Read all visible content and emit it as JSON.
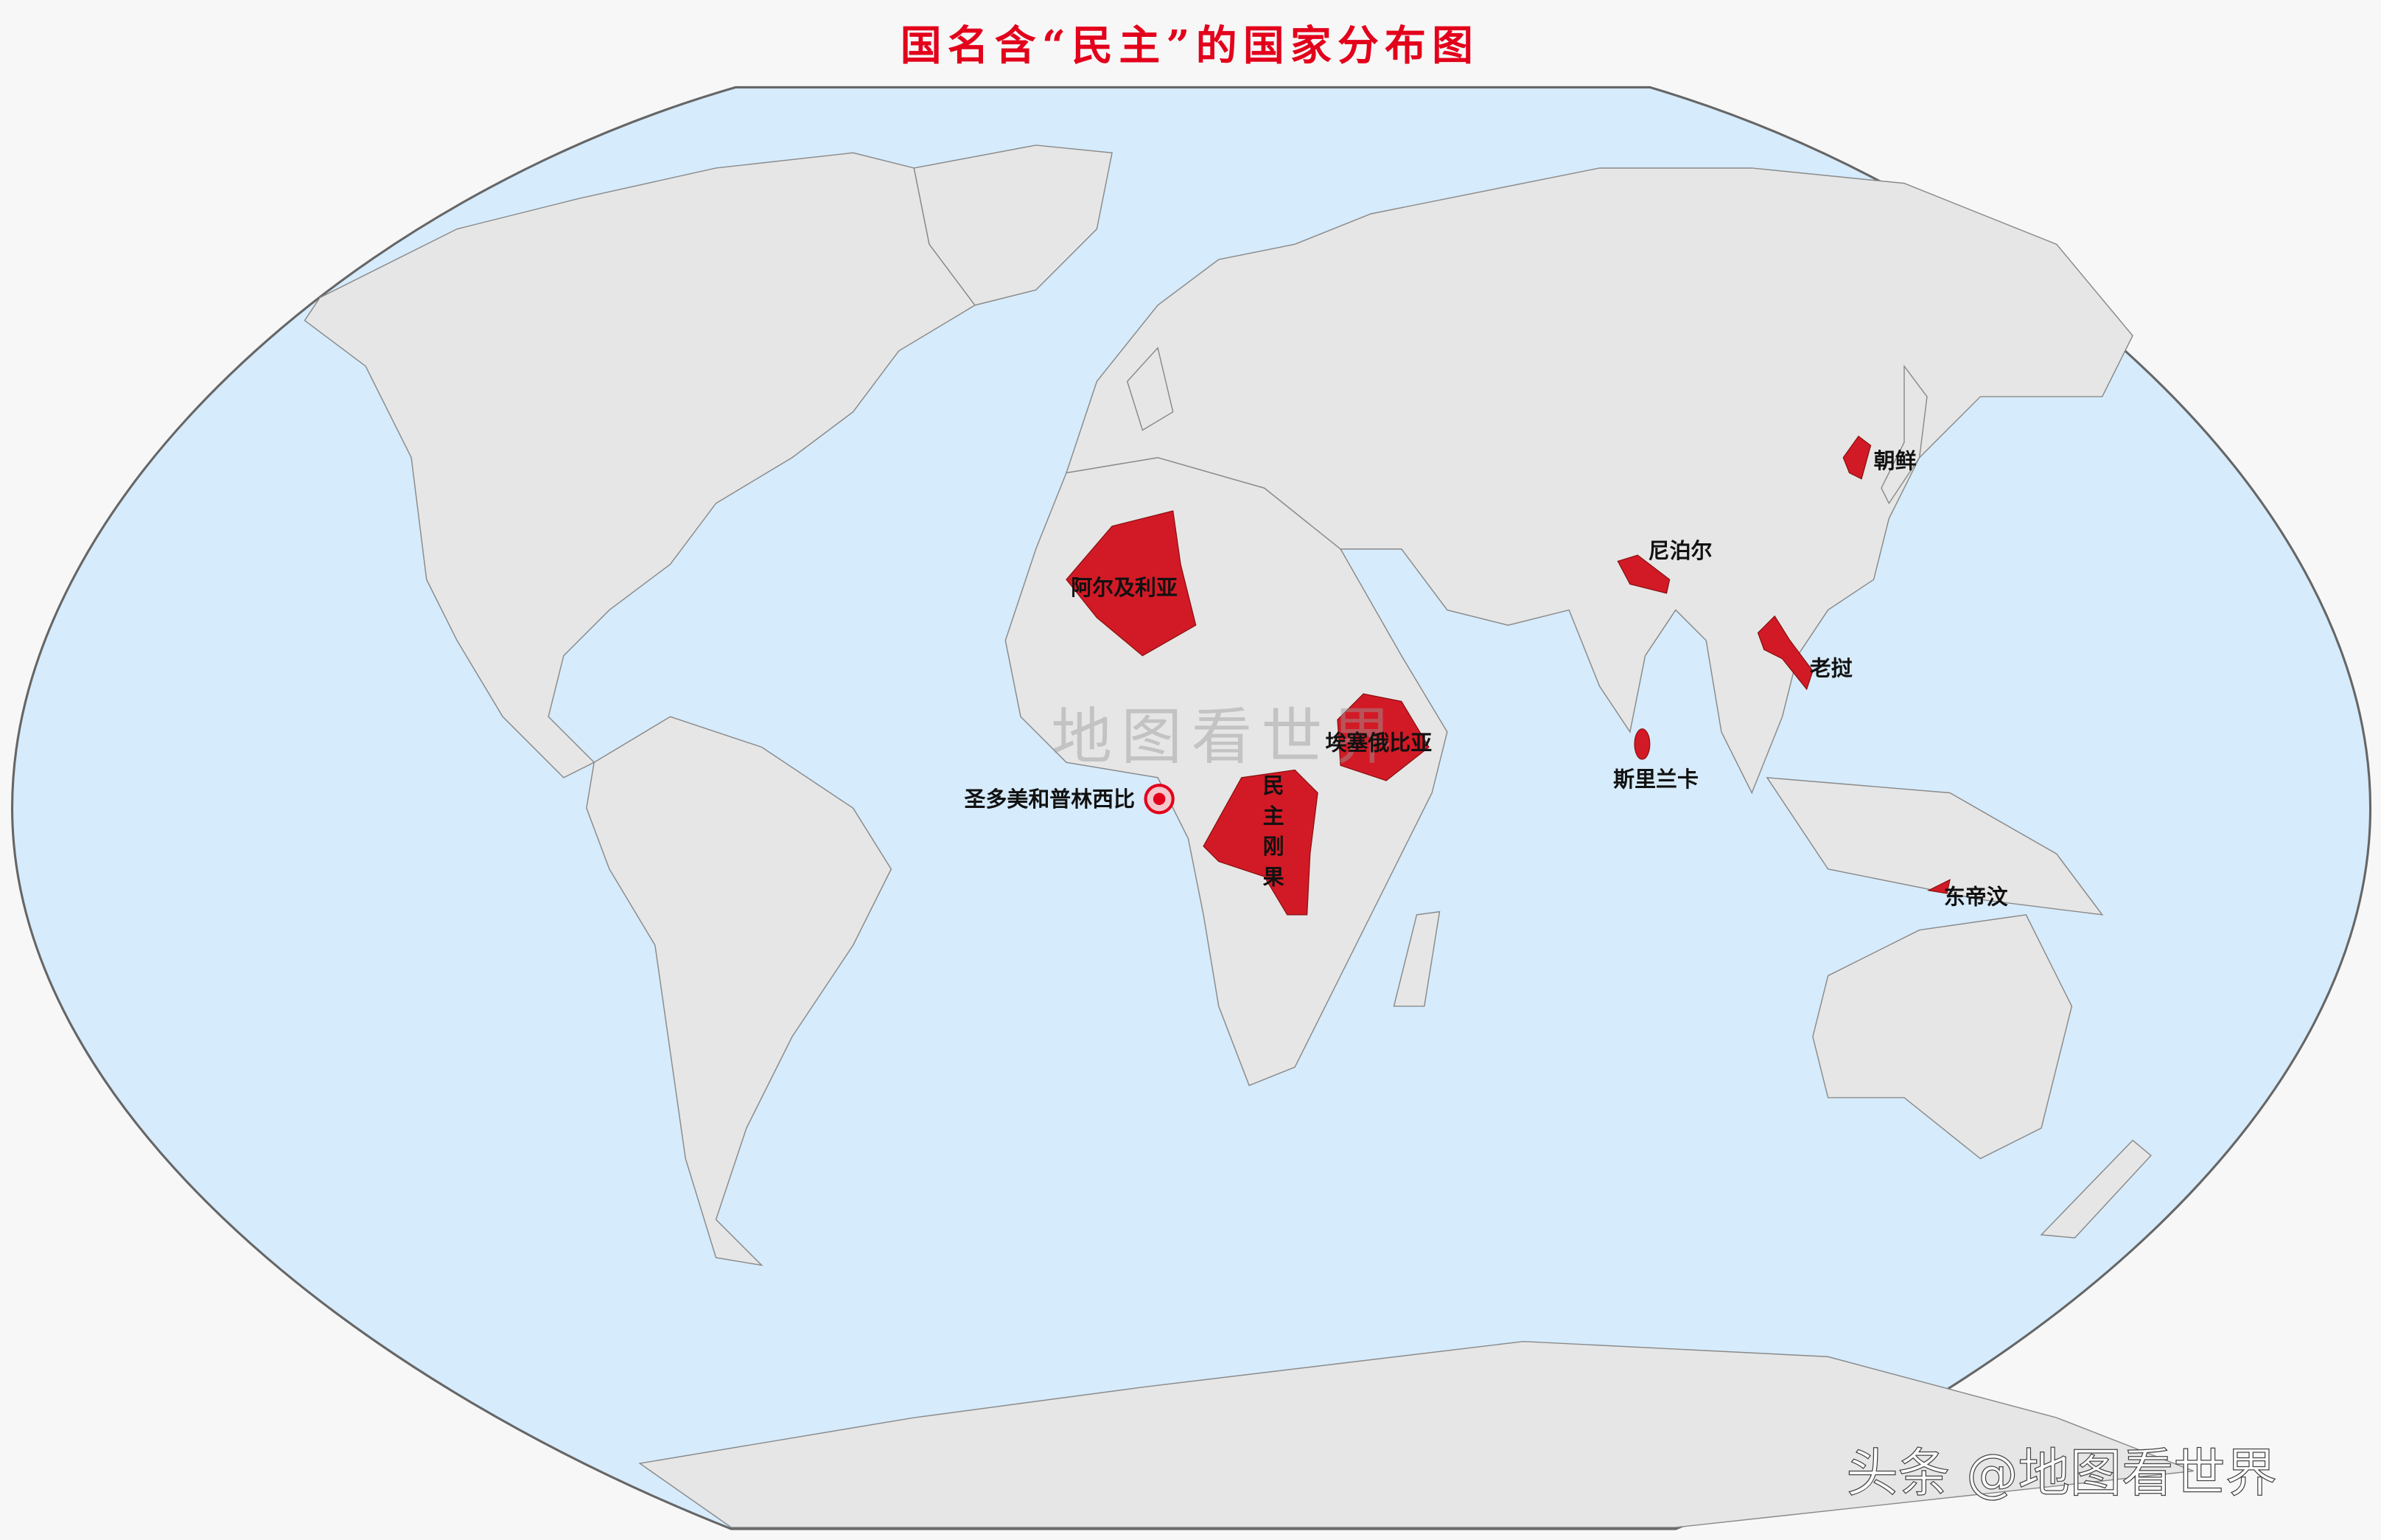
{
  "title": "国名含“民主”的国家分布图",
  "watermark": "地图看世界",
  "source_credit": "头条 @地图看世界",
  "colors": {
    "ocean": "#d6ebfb",
    "land": "#e6e6e6",
    "highlight": "#d21a26",
    "title": "#e3001b",
    "background": "#f7f7f7"
  },
  "countries": [
    {
      "key": "algeria",
      "label": "阿尔及利亚"
    },
    {
      "key": "dr_congo",
      "label": "民主刚果"
    },
    {
      "key": "ethiopia",
      "label": "埃塞俄比亚"
    },
    {
      "key": "sao_tome",
      "label": "圣多美和普林西比"
    },
    {
      "key": "nepal",
      "label": "尼泊尔"
    },
    {
      "key": "north_korea",
      "label": "朝鲜"
    },
    {
      "key": "laos",
      "label": "老挝"
    },
    {
      "key": "sri_lanka",
      "label": "斯里兰卡"
    },
    {
      "key": "east_timor",
      "label": "东帝汶"
    }
  ],
  "drc_chars": [
    "民",
    "主",
    "刚",
    "果"
  ]
}
